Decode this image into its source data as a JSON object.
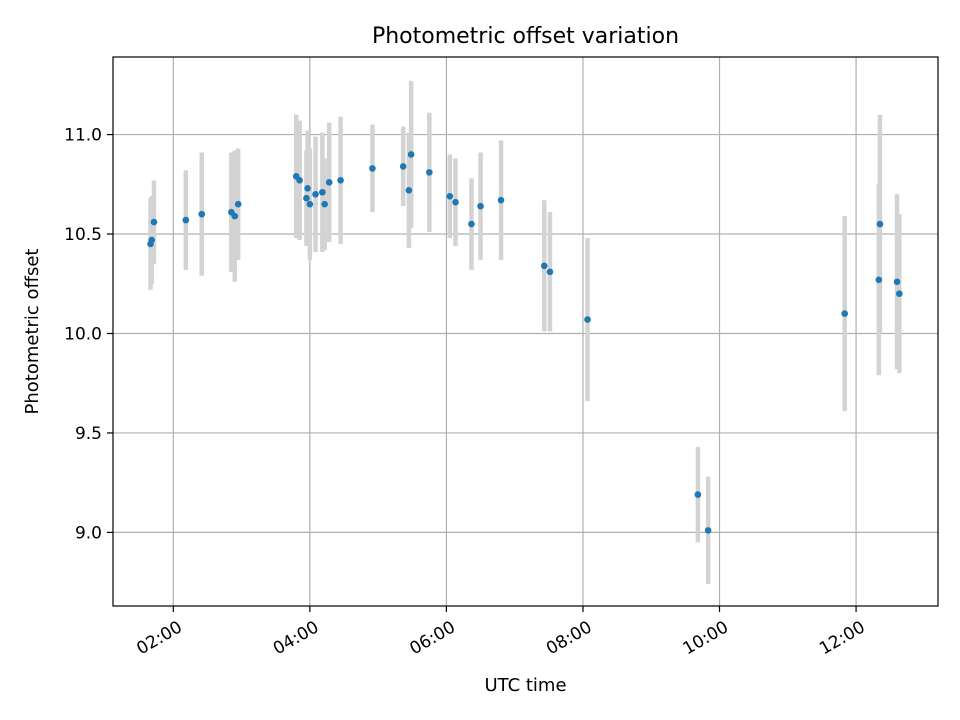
{
  "chart_data": {
    "type": "scatter",
    "title": "Photometric offset variation",
    "xlabel": "UTC time",
    "ylabel": "Photometric offset",
    "x_format": "HH:MM",
    "xlim": [
      "01:07",
      "13:12"
    ],
    "ylim": [
      8.63,
      11.39
    ],
    "xticks": [
      "02:00",
      "04:00",
      "06:00",
      "08:00",
      "10:00",
      "12:00"
    ],
    "yticks": [
      9.0,
      9.5,
      10.0,
      10.5,
      11.0
    ],
    "ytick_labels": [
      "9.0",
      "9.5",
      "10.0",
      "10.5",
      "11.0"
    ],
    "grid": true,
    "colors": {
      "point": "#1f77b4",
      "error_bar": "#d3d3d3"
    },
    "series": [
      {
        "points": [
          {
            "x": "01:40",
            "y": 10.45,
            "err": 0.23
          },
          {
            "x": "01:41",
            "y": 10.47,
            "err": 0.22
          },
          {
            "x": "01:43",
            "y": 10.56,
            "err": 0.21
          },
          {
            "x": "02:11",
            "y": 10.57,
            "err": 0.25
          },
          {
            "x": "02:25",
            "y": 10.6,
            "err": 0.31
          },
          {
            "x": "02:51",
            "y": 10.61,
            "err": 0.3
          },
          {
            "x": "02:54",
            "y": 10.59,
            "err": 0.33
          },
          {
            "x": "02:57",
            "y": 10.65,
            "err": 0.28
          },
          {
            "x": "03:48",
            "y": 10.79,
            "err": 0.31
          },
          {
            "x": "03:51",
            "y": 10.77,
            "err": 0.3
          },
          {
            "x": "03:57",
            "y": 10.68,
            "err": 0.24
          },
          {
            "x": "03:58",
            "y": 10.73,
            "err": 0.29
          },
          {
            "x": "04:00",
            "y": 10.65,
            "err": 0.28
          },
          {
            "x": "04:05",
            "y": 10.7,
            "err": 0.29
          },
          {
            "x": "04:11",
            "y": 10.71,
            "err": 0.3
          },
          {
            "x": "04:13",
            "y": 10.65,
            "err": 0.23
          },
          {
            "x": "04:17",
            "y": 10.76,
            "err": 0.3
          },
          {
            "x": "04:27",
            "y": 10.77,
            "err": 0.32
          },
          {
            "x": "04:55",
            "y": 10.83,
            "err": 0.22
          },
          {
            "x": "05:22",
            "y": 10.84,
            "err": 0.2
          },
          {
            "x": "05:27",
            "y": 10.72,
            "err": 0.29
          },
          {
            "x": "05:29",
            "y": 10.9,
            "err": 0.37
          },
          {
            "x": "05:45",
            "y": 10.81,
            "err": 0.3
          },
          {
            "x": "06:03",
            "y": 10.69,
            "err": 0.21
          },
          {
            "x": "06:08",
            "y": 10.66,
            "err": 0.22
          },
          {
            "x": "06:22",
            "y": 10.55,
            "err": 0.23
          },
          {
            "x": "06:30",
            "y": 10.64,
            "err": 0.27
          },
          {
            "x": "06:48",
            "y": 10.67,
            "err": 0.3
          },
          {
            "x": "07:26",
            "y": 10.34,
            "err": 0.33
          },
          {
            "x": "07:31",
            "y": 10.31,
            "err": 0.3
          },
          {
            "x": "08:04",
            "y": 10.07,
            "err": 0.41
          },
          {
            "x": "09:41",
            "y": 9.19,
            "err": 0.24
          },
          {
            "x": "09:50",
            "y": 9.01,
            "err": 0.27
          },
          {
            "x": "11:50",
            "y": 10.1,
            "err": 0.49
          },
          {
            "x": "12:20",
            "y": 10.27,
            "err": 0.48
          },
          {
            "x": "12:21",
            "y": 10.55,
            "err": 0.55
          },
          {
            "x": "12:36",
            "y": 10.26,
            "err": 0.44
          },
          {
            "x": "12:38",
            "y": 10.2,
            "err": 0.4
          }
        ]
      }
    ]
  }
}
